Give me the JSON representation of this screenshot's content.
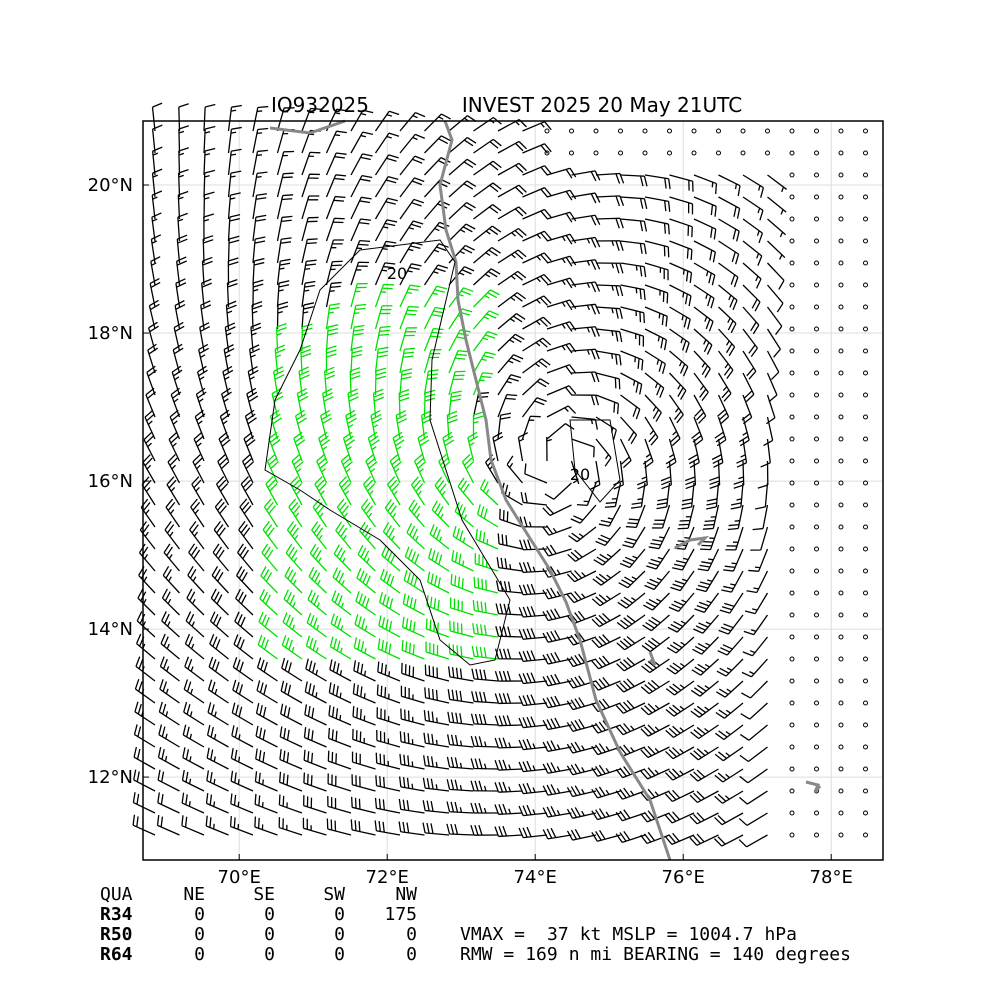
{
  "title": {
    "storm_id": "IO932025",
    "description": "INVEST 2025 20 May 21UTC"
  },
  "map": {
    "xlim": [
      68.7,
      78.7
    ],
    "ylim": [
      10.88,
      20.865
    ],
    "xticks": [
      {
        "value": 70,
        "label": "70°E"
      },
      {
        "value": 72,
        "label": "72°E"
      },
      {
        "value": 74,
        "label": "74°E"
      },
      {
        "value": 76,
        "label": "76°E"
      },
      {
        "value": 78,
        "label": "78°E"
      }
    ],
    "yticks": [
      {
        "value": 12,
        "label": "12°N"
      },
      {
        "value": 14,
        "label": "14°N"
      },
      {
        "value": 16,
        "label": "16°N"
      },
      {
        "value": 18,
        "label": "18°N"
      },
      {
        "value": 20,
        "label": "20°N"
      }
    ],
    "contour_labels": [
      "20",
      "20"
    ]
  },
  "table": {
    "header": [
      "QUA",
      "NE",
      "SE",
      "SW",
      "NW"
    ],
    "rows": [
      [
        "R34",
        0,
        0,
        0,
        175
      ],
      [
        "R50",
        0,
        0,
        0,
        0
      ],
      [
        "R64",
        0,
        0,
        0,
        0
      ]
    ]
  },
  "stats": {
    "vmax_label": "VMAX =",
    "vmax": 37,
    "vmax_unit": "kt",
    "mslp_label": "MSLP =",
    "mslp": 1004.7,
    "mslp_unit": "hPa",
    "rmw_label": "RMW =",
    "rmw": 169,
    "rmw_unit": "n mi",
    "bearing_label": "BEARING =",
    "bearing": 140,
    "bearing_unit": "degrees"
  }
}
